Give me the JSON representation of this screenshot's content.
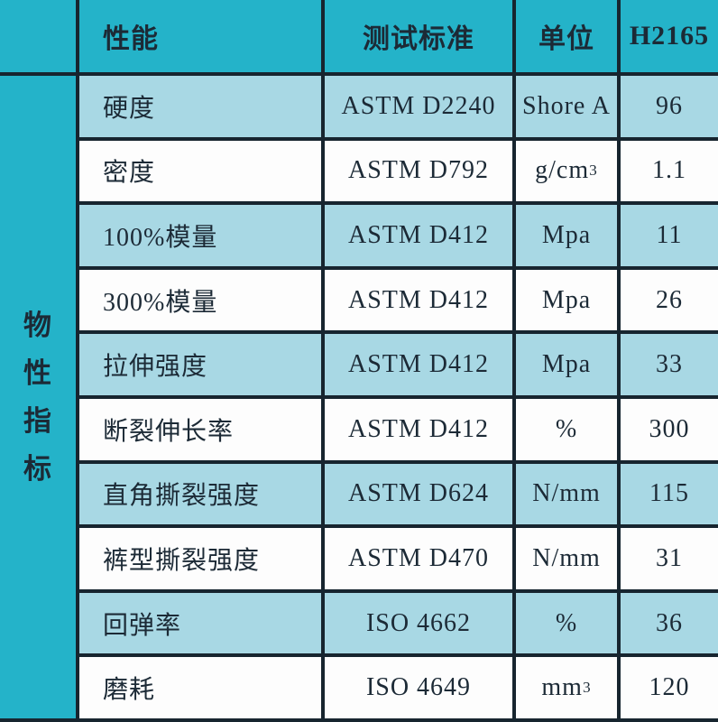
{
  "table": {
    "title": "物性指标",
    "side_label_chars": [
      "物",
      "性",
      "指",
      "标"
    ],
    "headers": {
      "property": "性能",
      "standard": "测试标准",
      "unit": "单位",
      "grade": "H2165"
    },
    "rows": [
      {
        "property": "硬度",
        "standard": "ASTM D2240",
        "unit": "Shore A",
        "unit_sup": "",
        "value": "96"
      },
      {
        "property": "密度",
        "standard": "ASTM D792",
        "unit": "g/cm",
        "unit_sup": "3",
        "value": "1.1"
      },
      {
        "property": "100%模量",
        "standard": "ASTM D412",
        "unit": "Mpa",
        "unit_sup": "",
        "value": "11"
      },
      {
        "property": "300%模量",
        "standard": "ASTM D412",
        "unit": "Mpa",
        "unit_sup": "",
        "value": "26"
      },
      {
        "property": "拉伸强度",
        "standard": "ASTM D412",
        "unit": "Mpa",
        "unit_sup": "",
        "value": "33"
      },
      {
        "property": "断裂伸长率",
        "standard": "ASTM D412",
        "unit": "%",
        "unit_sup": "",
        "value": "300"
      },
      {
        "property": "直角撕裂强度",
        "standard": "ASTM D624",
        "unit": "N/mm",
        "unit_sup": "",
        "value": "115"
      },
      {
        "property": "裤型撕裂强度",
        "standard": "ASTM D470",
        "unit": "N/mm",
        "unit_sup": "",
        "value": "31"
      },
      {
        "property": "回弹率",
        "standard": "ISO 4662",
        "unit": "%",
        "unit_sup": "",
        "value": "36"
      },
      {
        "property": "磨耗",
        "standard": "ISO 4649",
        "unit": "mm",
        "unit_sup": "3",
        "value": "120"
      }
    ],
    "colors": {
      "teal": "#24b3c9",
      "row_light_blue": "#a8d8e4",
      "row_white": "#fdfdfd",
      "grid_border": "#17252f",
      "text": "#1c2a36"
    }
  },
  "chart_data": {
    "type": "table",
    "title": "物性指标 (H2165 物性表)",
    "columns": [
      "性能",
      "测试标准",
      "单位",
      "H2165"
    ],
    "rows": [
      [
        "硬度",
        "ASTM D2240",
        "Shore A",
        "96"
      ],
      [
        "密度",
        "ASTM D792",
        "g/cm3",
        "1.1"
      ],
      [
        "100%模量",
        "ASTM D412",
        "Mpa",
        "11"
      ],
      [
        "300%模量",
        "ASTM D412",
        "Mpa",
        "26"
      ],
      [
        "拉伸强度",
        "ASTM D412",
        "Mpa",
        "33"
      ],
      [
        "断裂伸长率",
        "ASTM D412",
        "%",
        "300"
      ],
      [
        "直角撕裂强度",
        "ASTM D624",
        "N/mm",
        "115"
      ],
      [
        "裤型撕裂强度",
        "ASTM D470",
        "N/mm",
        "31"
      ],
      [
        "回弹率",
        "ISO 4662",
        "%",
        "36"
      ],
      [
        "磨耗",
        "ISO 4649",
        "mm3",
        "120"
      ]
    ]
  }
}
